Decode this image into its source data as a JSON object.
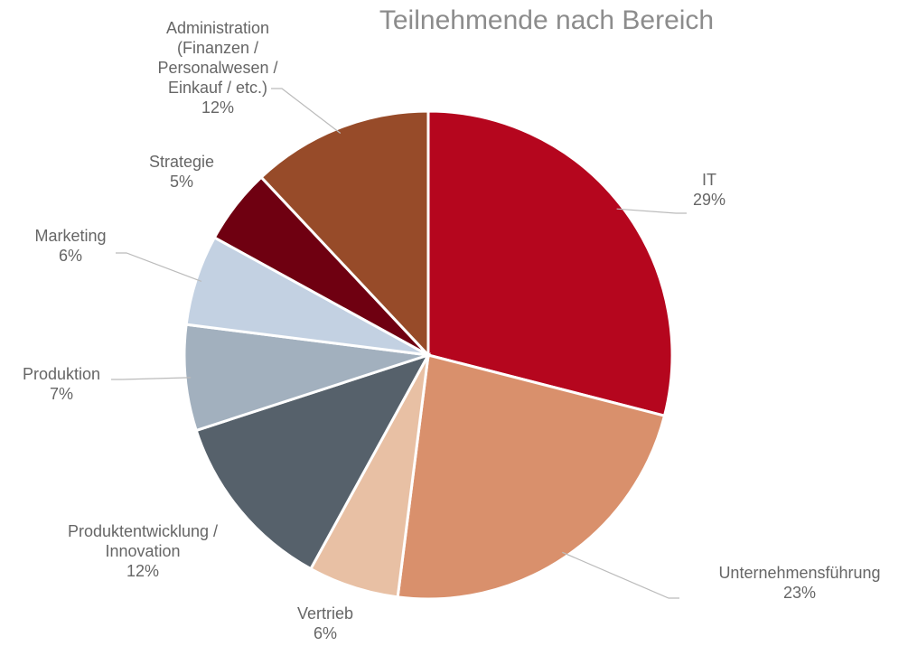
{
  "chart_data": {
    "type": "pie",
    "title": "Teilnehmende nach Bereich",
    "categories": [
      "IT",
      "Unternehmensführung",
      "Vertrieb",
      "Produktentwicklung / Innovation",
      "Produktion",
      "Marketing",
      "Strategie",
      "Administration (Finanzen / Personalwesen / Einkauf / etc.)"
    ],
    "values": [
      29,
      23,
      6,
      12,
      7,
      6,
      5,
      12
    ],
    "value_labels": [
      "29%",
      "23%",
      "6%",
      "12%",
      "7%",
      "6%",
      "5%",
      "12%"
    ],
    "colors": [
      "#b5061e",
      "#d9906c",
      "#e8c0a4",
      "#56616b",
      "#a2b0be",
      "#c3d1e2",
      "#6f0011",
      "#974b29"
    ]
  }
}
